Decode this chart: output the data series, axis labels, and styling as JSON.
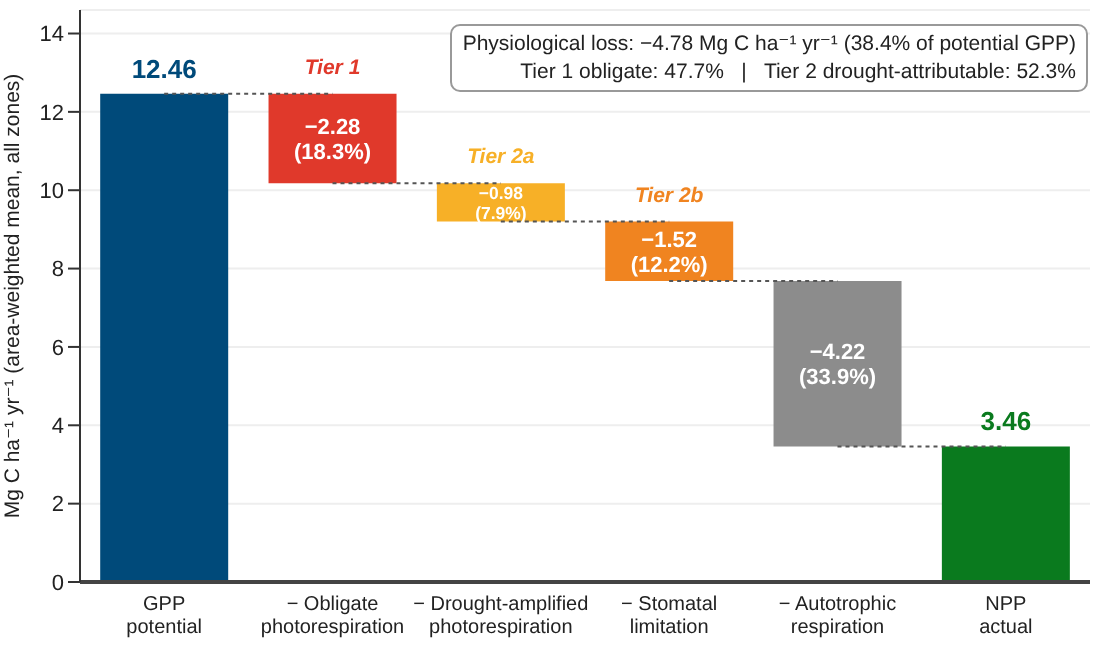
{
  "chart_data": {
    "type": "bar",
    "categories": [
      "GPP\npotential",
      "− Obligate\nphotorespiration",
      "− Drought-amplified\nphotorespiration",
      "− Stomatal\nlimitation",
      "− Autotrophic\nrespiration",
      "NPP\nactual"
    ],
    "values": [
      12.46,
      -2.28,
      -0.98,
      -1.52,
      -4.22,
      3.46
    ],
    "base": [
      0,
      12.46,
      10.18,
      9.2,
      7.68,
      0
    ],
    "colors": [
      "#004a7a",
      "#e0392b",
      "#f7b027",
      "#f08420",
      "#8c8c8c",
      "#0a7a1e"
    ],
    "value_labels": [
      "12.46",
      "−2.28\n(18.3%)",
      "−0.98\n(7.9%)",
      "−1.52\n(12.2%)",
      "−4.22\n(33.9%)",
      "3.46"
    ],
    "ylabel": "Mg C ha⁻¹ yr⁻¹ (area-weighted mean, all zones)",
    "ylim": [
      0,
      14.6
    ],
    "yticks": [
      0,
      2,
      4,
      6,
      8,
      10,
      12,
      14
    ],
    "grid": "y",
    "annotations": [
      "Physiological loss: −4.78 Mg C ha⁻¹ yr⁻¹ (38.4% of potential GPP)\nTier 1 obligate: 47.7%   |   Tier 2 drought-attributable: 52.3%",
      {
        "text": "Tier 1",
        "x": "− Obligate\nphotorespiration",
        "y": 12.46
      },
      {
        "text": "Tier 2a",
        "x": "− Drought-amplified\nphotorespiration",
        "y": 10.18
      },
      {
        "text": "Tier 2b",
        "x": "− Stomatal\nlimitation",
        "y": 9.2
      }
    ]
  }
}
